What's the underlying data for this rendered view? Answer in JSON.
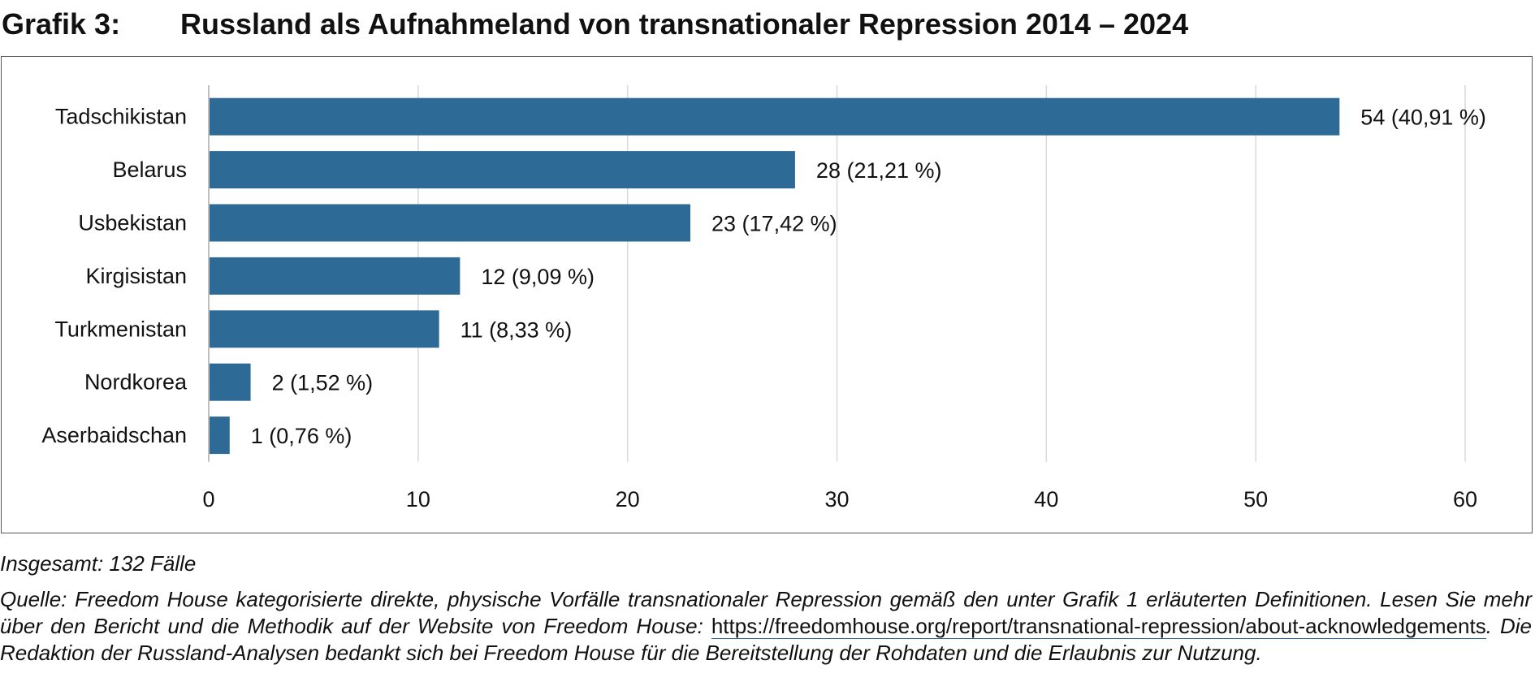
{
  "figure": {
    "label": "Grafik 3:",
    "title": "Russland als Aufnahmeland von transnationaler Repression 2014 – 2024"
  },
  "chart_data": {
    "type": "bar",
    "orientation": "horizontal",
    "categories": [
      "Tadschikistan",
      "Belarus",
      "Usbekistan",
      "Kirgisistan",
      "Turkmenistan",
      "Nordkorea",
      "Aserbaidschan"
    ],
    "values": [
      54,
      28,
      23,
      12,
      11,
      2,
      1
    ],
    "data_labels": [
      "54 (40,91 %)",
      "28 (21,21 %)",
      "23 (17,42 %)",
      "12 (9,09 %)",
      "11 (8,33 %)",
      "2 (1,52 %)",
      "1 (0,76 %)"
    ],
    "xlim": [
      0,
      60
    ],
    "xticks": [
      0,
      10,
      20,
      30,
      40,
      50,
      60
    ],
    "xlabel": "",
    "ylabel": "",
    "grid": "vertical",
    "legend": "none",
    "bar_color": "#2e6a96",
    "grid_color": "#d9d9d9",
    "axis_color": "#bfbfbf"
  },
  "notes": {
    "total": "Insgesamt: 132 Fälle",
    "source_part1": "Quelle: Freedom House kategorisierte direkte, physische Vorfälle transnationaler Repression gemäß den unter Grafik 1 erläuterten Definitionen. Lesen Sie mehr über den Bericht und die Methodik auf der Website von Freedom House: ",
    "source_link": "https://freedomhouse.org/report/transnational-repression/about-acknowledgements",
    "source_part2": ". Die Redaktion der Russland-Analysen bedankt sich bei Freedom House für die Bereitstellung der Rohdaten und die Erlaubnis zur Nutzung."
  }
}
